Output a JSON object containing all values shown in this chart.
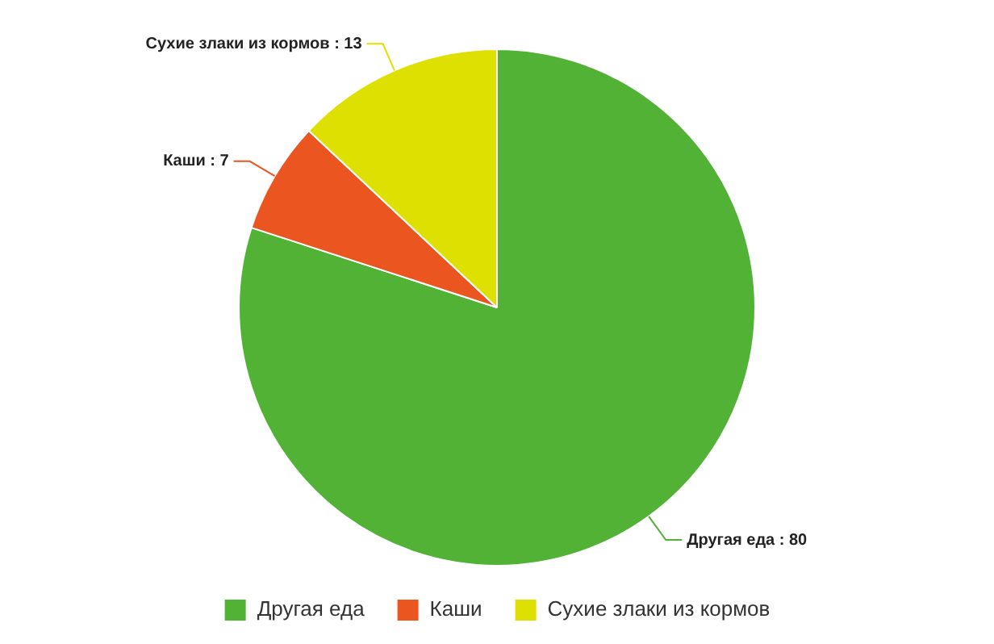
{
  "chart_data": {
    "type": "pie",
    "categories": [
      "Другая еда",
      "Каши",
      "Сухие злаки из кормов"
    ],
    "values": [
      80,
      7,
      13
    ],
    "value_labels": [
      ": 80",
      ": 7",
      ": 13"
    ],
    "colors": [
      "#52b236",
      "#ea5520",
      "#dde000"
    ],
    "legend": "bottom"
  }
}
